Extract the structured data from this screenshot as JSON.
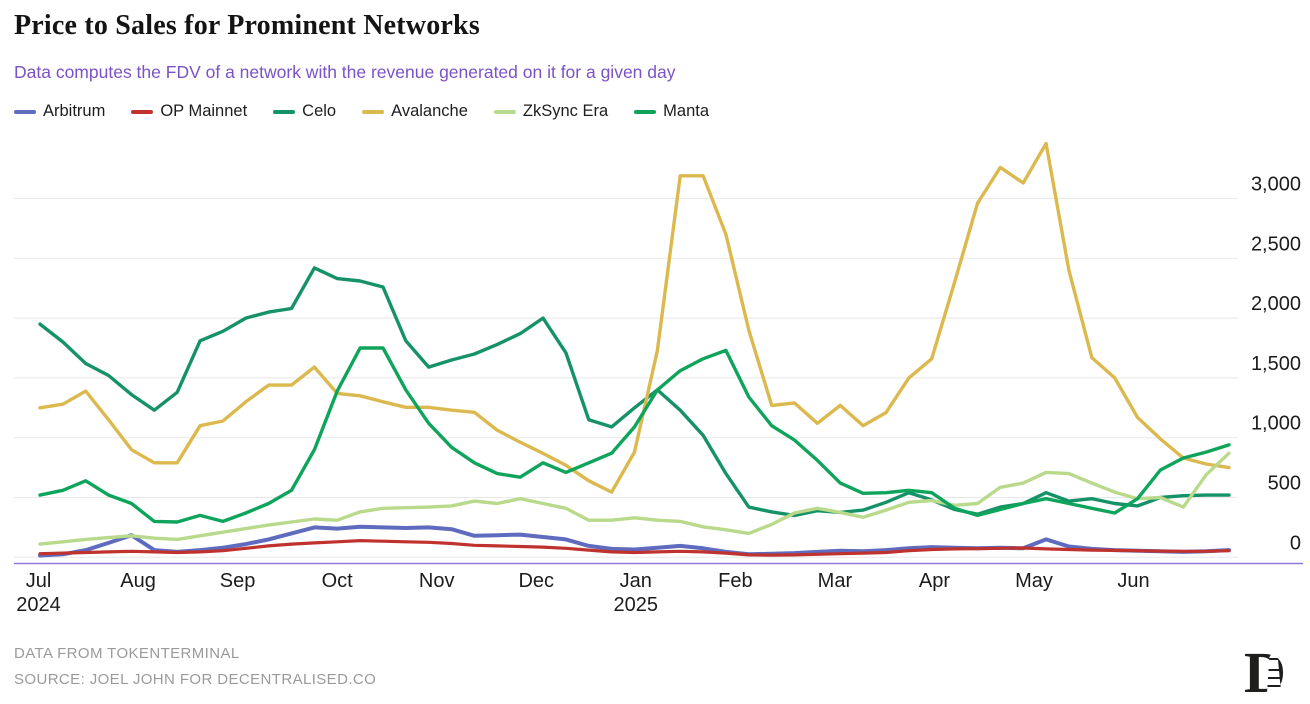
{
  "header": {
    "title": "Price to Sales for Prominent Networks",
    "subtitle": "Data computes the FDV of a network with the revenue generated on it for a given day"
  },
  "legend": [
    {
      "label": "Arbitrum",
      "color": "#5e6bbe"
    },
    {
      "label": "OP Mainnet",
      "color": "#c0322e"
    },
    {
      "label": "Celo",
      "color": "#169268"
    },
    {
      "label": "Avalanche",
      "color": "#dcb94f"
    },
    {
      "label": "ZkSync Era",
      "color": "#b9d98b"
    },
    {
      "label": "Manta",
      "color": "#0fa45c"
    }
  ],
  "footer": {
    "line1": "DATA FROM TOKENTERMINAL",
    "line2": "SOURCE: JOEL JOHN FOR DECENTRALISED.CO"
  },
  "logo": {
    "letter": "D"
  },
  "chart_data": {
    "type": "line",
    "title": "Price to Sales for Prominent Networks",
    "x_unit": "weekly (Jul 2024 - Jun 2025)",
    "grid": true,
    "legend_position": "top-left",
    "ylim": [
      0,
      3490
    ],
    "y_ticks": [
      {
        "value": 0,
        "label": "0"
      },
      {
        "value": 500,
        "label": "500"
      },
      {
        "value": 1000,
        "label": "1,000"
      },
      {
        "value": 1500,
        "label": "1,500"
      },
      {
        "value": 2000,
        "label": "2,000"
      },
      {
        "value": 2500,
        "label": "2,500"
      },
      {
        "value": 3000,
        "label": "3,000"
      }
    ],
    "months": [
      {
        "label": "Jul",
        "year": "2024"
      },
      {
        "label": "Aug"
      },
      {
        "label": "Sep"
      },
      {
        "label": "Oct"
      },
      {
        "label": "Nov"
      },
      {
        "label": "Dec"
      },
      {
        "label": "Jan",
        "year": "2025"
      },
      {
        "label": "Feb"
      },
      {
        "label": "Mar"
      },
      {
        "label": "Apr"
      },
      {
        "label": "May"
      },
      {
        "label": "Jun"
      }
    ],
    "series": [
      {
        "name": "Arbitrum",
        "color": "#5e6bbe",
        "width": 4,
        "values": [
          15,
          25,
          60,
          120,
          185,
          60,
          45,
          60,
          80,
          110,
          150,
          200,
          250,
          240,
          255,
          250,
          245,
          250,
          235,
          180,
          185,
          190,
          170,
          150,
          95,
          70,
          65,
          80,
          95,
          75,
          45,
          25,
          30,
          35,
          45,
          55,
          50,
          60,
          75,
          85,
          80,
          75,
          80,
          75,
          150,
          90,
          70,
          60,
          55,
          50,
          45,
          50,
          60
        ]
      },
      {
        "name": "OP Mainnet",
        "color": "#c0322e",
        "width": 3.2,
        "values": [
          30,
          35,
          40,
          45,
          50,
          45,
          40,
          45,
          55,
          75,
          95,
          110,
          120,
          130,
          140,
          135,
          130,
          125,
          115,
          100,
          95,
          90,
          85,
          75,
          60,
          45,
          40,
          45,
          50,
          45,
          35,
          20,
          18,
          20,
          25,
          30,
          35,
          40,
          55,
          65,
          70,
          72,
          75,
          78,
          70,
          65,
          60,
          58,
          55,
          52,
          50,
          50,
          55
        ]
      },
      {
        "name": "Celo",
        "color": "#169268",
        "width": 3.4,
        "values": [
          1950,
          1800,
          1620,
          1520,
          1360,
          1230,
          1380,
          1810,
          1890,
          2000,
          2050,
          2080,
          2420,
          2330,
          2310,
          2260,
          1810,
          1590,
          1650,
          1700,
          1780,
          1870,
          2000,
          1710,
          1150,
          1090,
          1250,
          1400,
          1230,
          1020,
          700,
          420,
          380,
          350,
          390,
          375,
          395,
          460,
          540,
          480,
          400,
          360,
          420,
          450,
          540,
          470,
          490,
          450,
          430,
          500,
          515,
          520,
          520
        ]
      },
      {
        "name": "Avalanche",
        "color": "#dcb94f",
        "width": 3.4,
        "values": [
          1250,
          1280,
          1390,
          1150,
          900,
          790,
          790,
          1100,
          1140,
          1300,
          1440,
          1440,
          1590,
          1370,
          1350,
          1300,
          1254,
          1254,
          1230,
          1212,
          1062,
          962,
          869,
          769,
          640,
          545,
          880,
          1730,
          3190,
          3190,
          2700,
          1900,
          1270,
          1290,
          1120,
          1270,
          1100,
          1210,
          1500,
          1660,
          2300,
          2960,
          3260,
          3130,
          3460,
          2400,
          1670,
          1500,
          1170,
          990,
          830,
          780,
          750
        ]
      },
      {
        "name": "ZkSync Era",
        "color": "#b9d98b",
        "width": 3.4,
        "values": [
          110,
          130,
          150,
          165,
          180,
          160,
          150,
          180,
          210,
          240,
          270,
          295,
          320,
          310,
          380,
          410,
          415,
          420,
          430,
          470,
          450,
          490,
          450,
          410,
          310,
          310,
          330,
          310,
          300,
          255,
          230,
          200,
          275,
          370,
          410,
          375,
          335,
          395,
          460,
          475,
          435,
          450,
          585,
          620,
          710,
          700,
          620,
          545,
          490,
          500,
          420,
          690,
          870
        ]
      },
      {
        "name": "Manta",
        "color": "#0fa45c",
        "width": 3.4,
        "values": [
          520,
          560,
          640,
          520,
          450,
          300,
          295,
          350,
          300,
          370,
          450,
          560,
          900,
          1390,
          1750,
          1750,
          1400,
          1120,
          920,
          790,
          700,
          670,
          790,
          710,
          790,
          870,
          1090,
          1400,
          1560,
          1660,
          1730,
          1340,
          1100,
          980,
          810,
          620,
          535,
          540,
          560,
          540,
          410,
          350,
          400,
          450,
          490,
          450,
          410,
          370,
          490,
          730,
          830,
          880,
          940
        ]
      }
    ]
  }
}
